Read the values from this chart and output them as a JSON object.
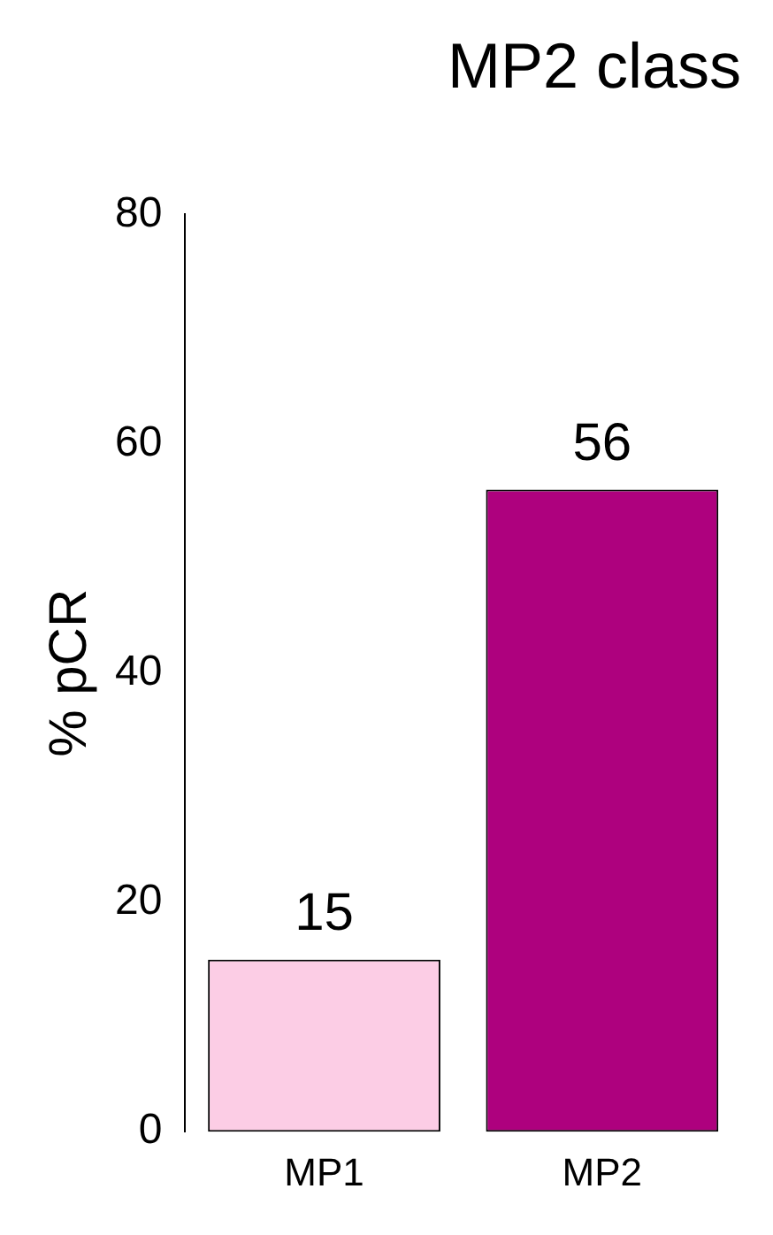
{
  "chart_data": {
    "type": "bar",
    "title": "MP2 class",
    "ylabel": "% pCR",
    "categories": [
      "MP1",
      "MP2"
    ],
    "values": [
      15,
      56
    ],
    "colors": [
      "#fccde5",
      "#ae017e"
    ],
    "ylim": [
      0,
      80
    ],
    "yticks": [
      0,
      20,
      40,
      60,
      80
    ],
    "data_labels": true,
    "grid": false,
    "legend": false
  }
}
